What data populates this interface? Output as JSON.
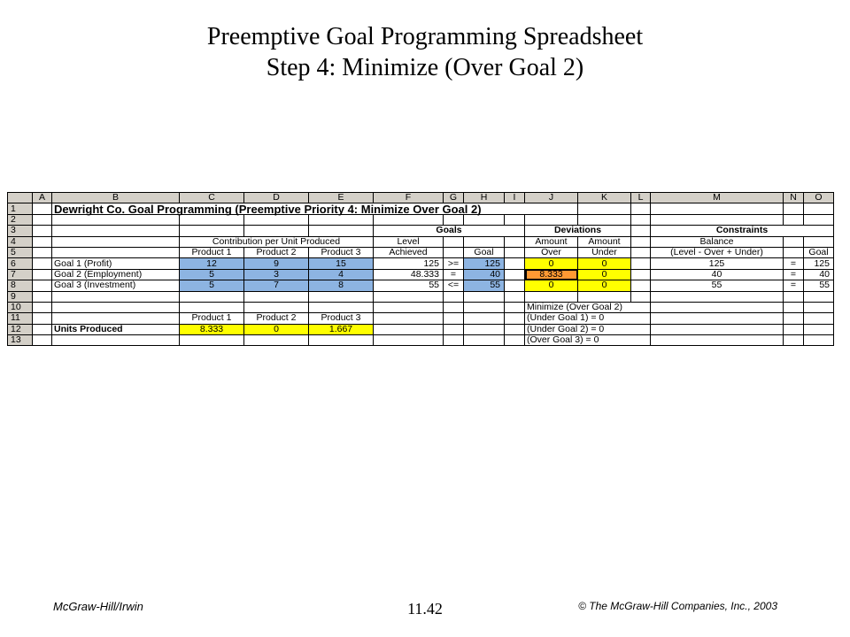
{
  "slide": {
    "title_line1": "Preemptive Goal Programming Spreadsheet",
    "title_line2": "Step 4: Minimize (Over Goal 2)",
    "footer_left": "McGraw-Hill/Irwin",
    "footer_center": "11.42",
    "footer_right": "© The McGraw-Hill Companies, Inc., 2003"
  },
  "sheet": {
    "columns": [
      "A",
      "B",
      "C",
      "D",
      "E",
      "F",
      "G",
      "H",
      "I",
      "J",
      "K",
      "L",
      "M",
      "N",
      "O"
    ],
    "rows": [
      "1",
      "2",
      "3",
      "4",
      "5",
      "6",
      "7",
      "8",
      "9",
      "10",
      "11",
      "12",
      "13"
    ],
    "r1_title": "Dewright Co. Goal Programming (Preemptive Priority 4: Minimize Over Goal 2)",
    "r3": {
      "goals": "Goals",
      "deviations": "Deviations",
      "constraints": "Constraints"
    },
    "r4": {
      "contribution": "Contribution per Unit Produced",
      "level": "Level",
      "amount_over": "Amount",
      "amount_under": "Amount",
      "balance": "Balance"
    },
    "r5": {
      "p1": "Product 1",
      "p2": "Product 2",
      "p3": "Product 3",
      "achieved": "Achieved",
      "goal": "Goal",
      "over": "Over",
      "under": "Under",
      "formula": "(Level - Over + Under)",
      "goal2": "Goal"
    },
    "goal_rows": [
      {
        "name": "Goal 1 (Profit)",
        "p1": "12",
        "p2": "9",
        "p3": "15",
        "level": "125",
        "op": ">=",
        "goal": "125",
        "over": "0",
        "under": "0",
        "balance": "125",
        "eq": "=",
        "goal2": "125"
      },
      {
        "name": "Goal 2 (Employment)",
        "p1": "5",
        "p2": "3",
        "p3": "4",
        "level": "48.333",
        "op": "=",
        "goal": "40",
        "over": "8.333",
        "under": "0",
        "balance": "40",
        "eq": "=",
        "goal2": "40"
      },
      {
        "name": "Goal 3 (Investment)",
        "p1": "5",
        "p2": "7",
        "p3": "8",
        "level": "55",
        "op": "<=",
        "goal": "55",
        "over": "0",
        "under": "0",
        "balance": "55",
        "eq": "=",
        "goal2": "55"
      }
    ],
    "r10_j": "Minimize (Over Goal 2)",
    "r11": {
      "p1": "Product 1",
      "p2": "Product 2",
      "p3": "Product 3",
      "j": "(Under Goal 1) = 0"
    },
    "r12": {
      "label": "Units Produced",
      "p1": "8.333",
      "p2": "0",
      "p3": "1.667",
      "j": "(Under Goal 2) = 0"
    },
    "r13_j": "(Over Goal 3) = 0"
  }
}
